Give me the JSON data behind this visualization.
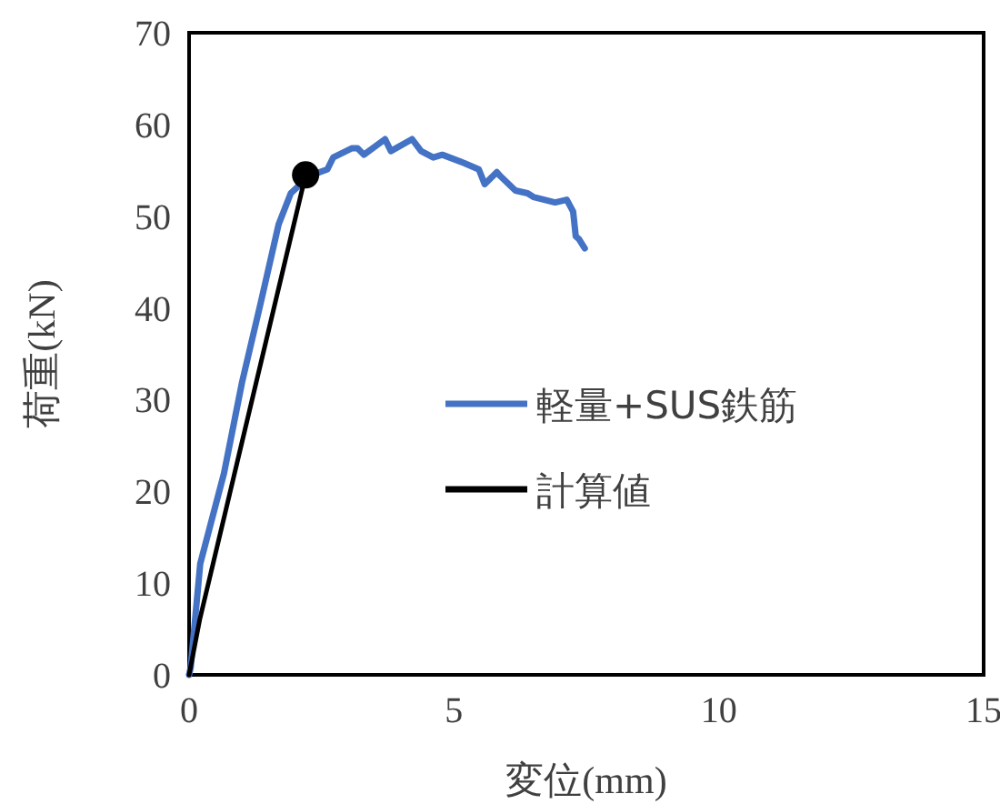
{
  "chart_data": {
    "type": "line",
    "xlabel": "変位(mm)",
    "ylabel": "荷重(kN)",
    "xlim": [
      0,
      15
    ],
    "ylim": [
      0,
      70
    ],
    "xticks": [
      0,
      5,
      10,
      15
    ],
    "yticks": [
      0,
      10,
      20,
      30,
      40,
      50,
      60,
      70
    ],
    "grid": false,
    "legend": "right",
    "marker": "none",
    "line_style": "solid",
    "series": [
      {
        "name": "軽量+SUS鉄筋",
        "color": "#4472c4",
        "x": [
          0,
          0.03,
          0.21,
          0.66,
          1.0,
          1.35,
          1.69,
          1.92,
          2.27,
          2.61,
          2.72,
          3.07,
          3.18,
          3.3,
          3.7,
          3.81,
          4.21,
          4.38,
          4.61,
          4.78,
          5.19,
          5.47,
          5.58,
          5.81,
          5.87,
          6.16,
          6.39,
          6.5,
          6.91,
          7.13,
          7.25,
          7.3,
          7.36,
          7.47
        ],
        "values": [
          0,
          0.8,
          12.1,
          22,
          31.9,
          40.5,
          49.1,
          52.5,
          54.4,
          55.1,
          56.4,
          57.4,
          57.4,
          56.7,
          58.4,
          57.1,
          58.4,
          57.1,
          56.4,
          56.7,
          55.8,
          55.1,
          53.5,
          54.8,
          54.4,
          52.8,
          52.5,
          52.1,
          51.5,
          51.8,
          50.5,
          47.8,
          47.5,
          46.5
        ]
      },
      {
        "name": "計算値",
        "color": "#000000",
        "x": [
          0,
          0.2,
          2.2
        ],
        "values": [
          0,
          6,
          54.5
        ]
      },
      {
        "type": "scatter",
        "marker": "circle",
        "color": "#000000",
        "x": [
          2.2
        ],
        "values": [
          54.5
        ]
      }
    ]
  }
}
